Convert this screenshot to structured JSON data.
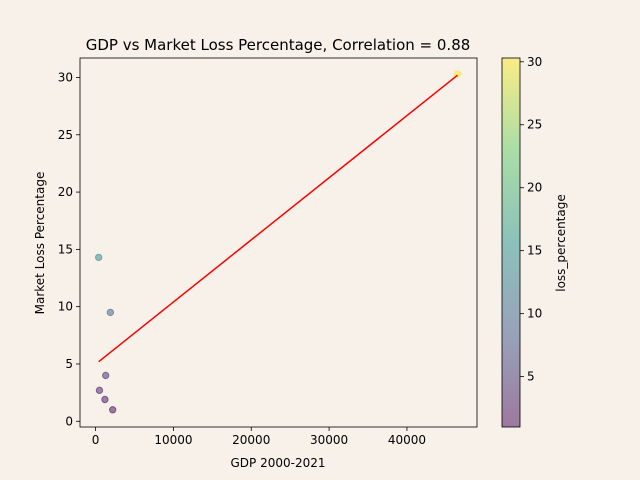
{
  "chart_data": {
    "type": "scatter",
    "title": "GDP vs Market Loss Percentage, Correlation = 0.88",
    "xlabel": "GDP 2000-2021",
    "ylabel": "Market Loss Percentage",
    "xlim": [
      -2000,
      49000
    ],
    "ylim": [
      -0.5,
      31.7
    ],
    "xticks": [
      0,
      10000,
      20000,
      30000,
      40000
    ],
    "xtick_labels": [
      "0",
      "10000",
      "20000",
      "30000",
      "40000"
    ],
    "yticks": [
      0,
      5,
      10,
      15,
      20,
      25,
      30
    ],
    "ytick_labels": [
      "0",
      "5",
      "10",
      "15",
      "20",
      "25",
      "30"
    ],
    "grid": false,
    "points": [
      {
        "x": 400,
        "y": 14.3
      },
      {
        "x": 1900,
        "y": 9.5
      },
      {
        "x": 1300,
        "y": 4.0
      },
      {
        "x": 500,
        "y": 2.7
      },
      {
        "x": 1200,
        "y": 1.9
      },
      {
        "x": 2200,
        "y": 1.0
      },
      {
        "x": 46500,
        "y": 30.3
      }
    ],
    "regression_line": {
      "x": [
        400,
        46500
      ],
      "y": [
        5.2,
        30.2
      ],
      "color": "#ff0000"
    },
    "colorbar": {
      "label": "loss_percentage",
      "range": [
        1.0,
        30.3
      ],
      "ticks": [
        5,
        10,
        15,
        20,
        25,
        30
      ],
      "tick_labels": [
        "5",
        "10",
        "15",
        "20",
        "25",
        "30"
      ],
      "colormap": "viridis"
    },
    "colors": {
      "background": "#f7f1ea",
      "axes": "#000000"
    }
  }
}
